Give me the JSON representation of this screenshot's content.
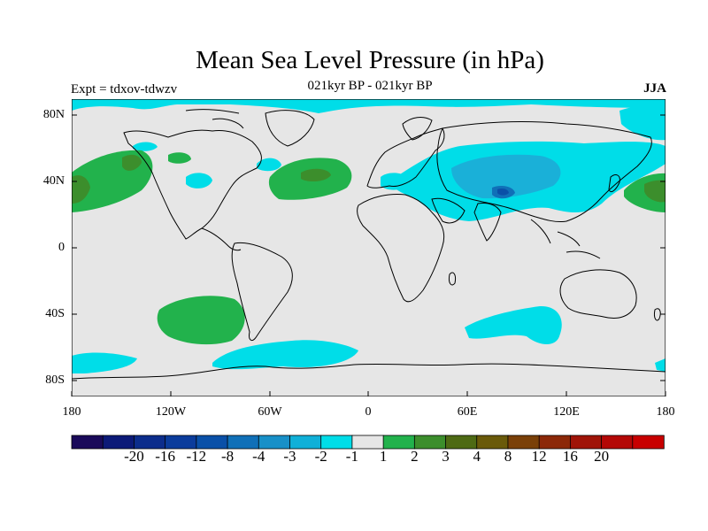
{
  "title": "Mean Sea Level Pressure (in hPa)",
  "subtitle": "021kyr BP - 021kyr BP",
  "left_label": "Expt = tdxov-tdwzv",
  "right_label": "JJA",
  "map": {
    "projection": "cylindrical-equidistant",
    "lon_range": [
      -180,
      180
    ],
    "lat_range": [
      -90,
      90
    ],
    "ocean_land_background": "#e6e6e6",
    "coastline_color": "#000000"
  },
  "lat_ticks": [
    {
      "label": "80N",
      "value": 80
    },
    {
      "label": "40N",
      "value": 40
    },
    {
      "label": "0",
      "value": 0
    },
    {
      "label": "40S",
      "value": -40
    },
    {
      "label": "80S",
      "value": -80
    }
  ],
  "lon_ticks": [
    {
      "label": "180",
      "value": -180
    },
    {
      "label": "120W",
      "value": -120
    },
    {
      "label": "60W",
      "value": -60
    },
    {
      "label": "0",
      "value": 0
    },
    {
      "label": "60E",
      "value": 60
    },
    {
      "label": "120E",
      "value": 120
    },
    {
      "label": "180",
      "value": 180
    }
  ],
  "colorbar": {
    "colors": [
      "#1a0a5a",
      "#0c1a78",
      "#0c2d8c",
      "#0b3c9c",
      "#0a50a8",
      "#1070b8",
      "#1890c8",
      "#10b0d8",
      "#00dde8",
      "#e6e6e6",
      "#22b24c",
      "#3c8e2c",
      "#4e6a14",
      "#6a5a0a",
      "#7a4008",
      "#8c2808",
      "#a01408",
      "#b40806",
      "#c80000"
    ],
    "labels": [
      "-20",
      "-16",
      "-12",
      "-8",
      "-4",
      "-3",
      "-2",
      "-1",
      "1",
      "2",
      "3",
      "4",
      "8",
      "12",
      "16",
      "20"
    ]
  },
  "anomaly_colors": {
    "neg1": "#00dde8",
    "neg2": "#1ab0d8",
    "neg3": "#1070b8",
    "neg4": "#0a50a8",
    "pos1": "#22b24c",
    "pos2": "#3c8e2c",
    "pos3": "#4e6a14"
  }
}
